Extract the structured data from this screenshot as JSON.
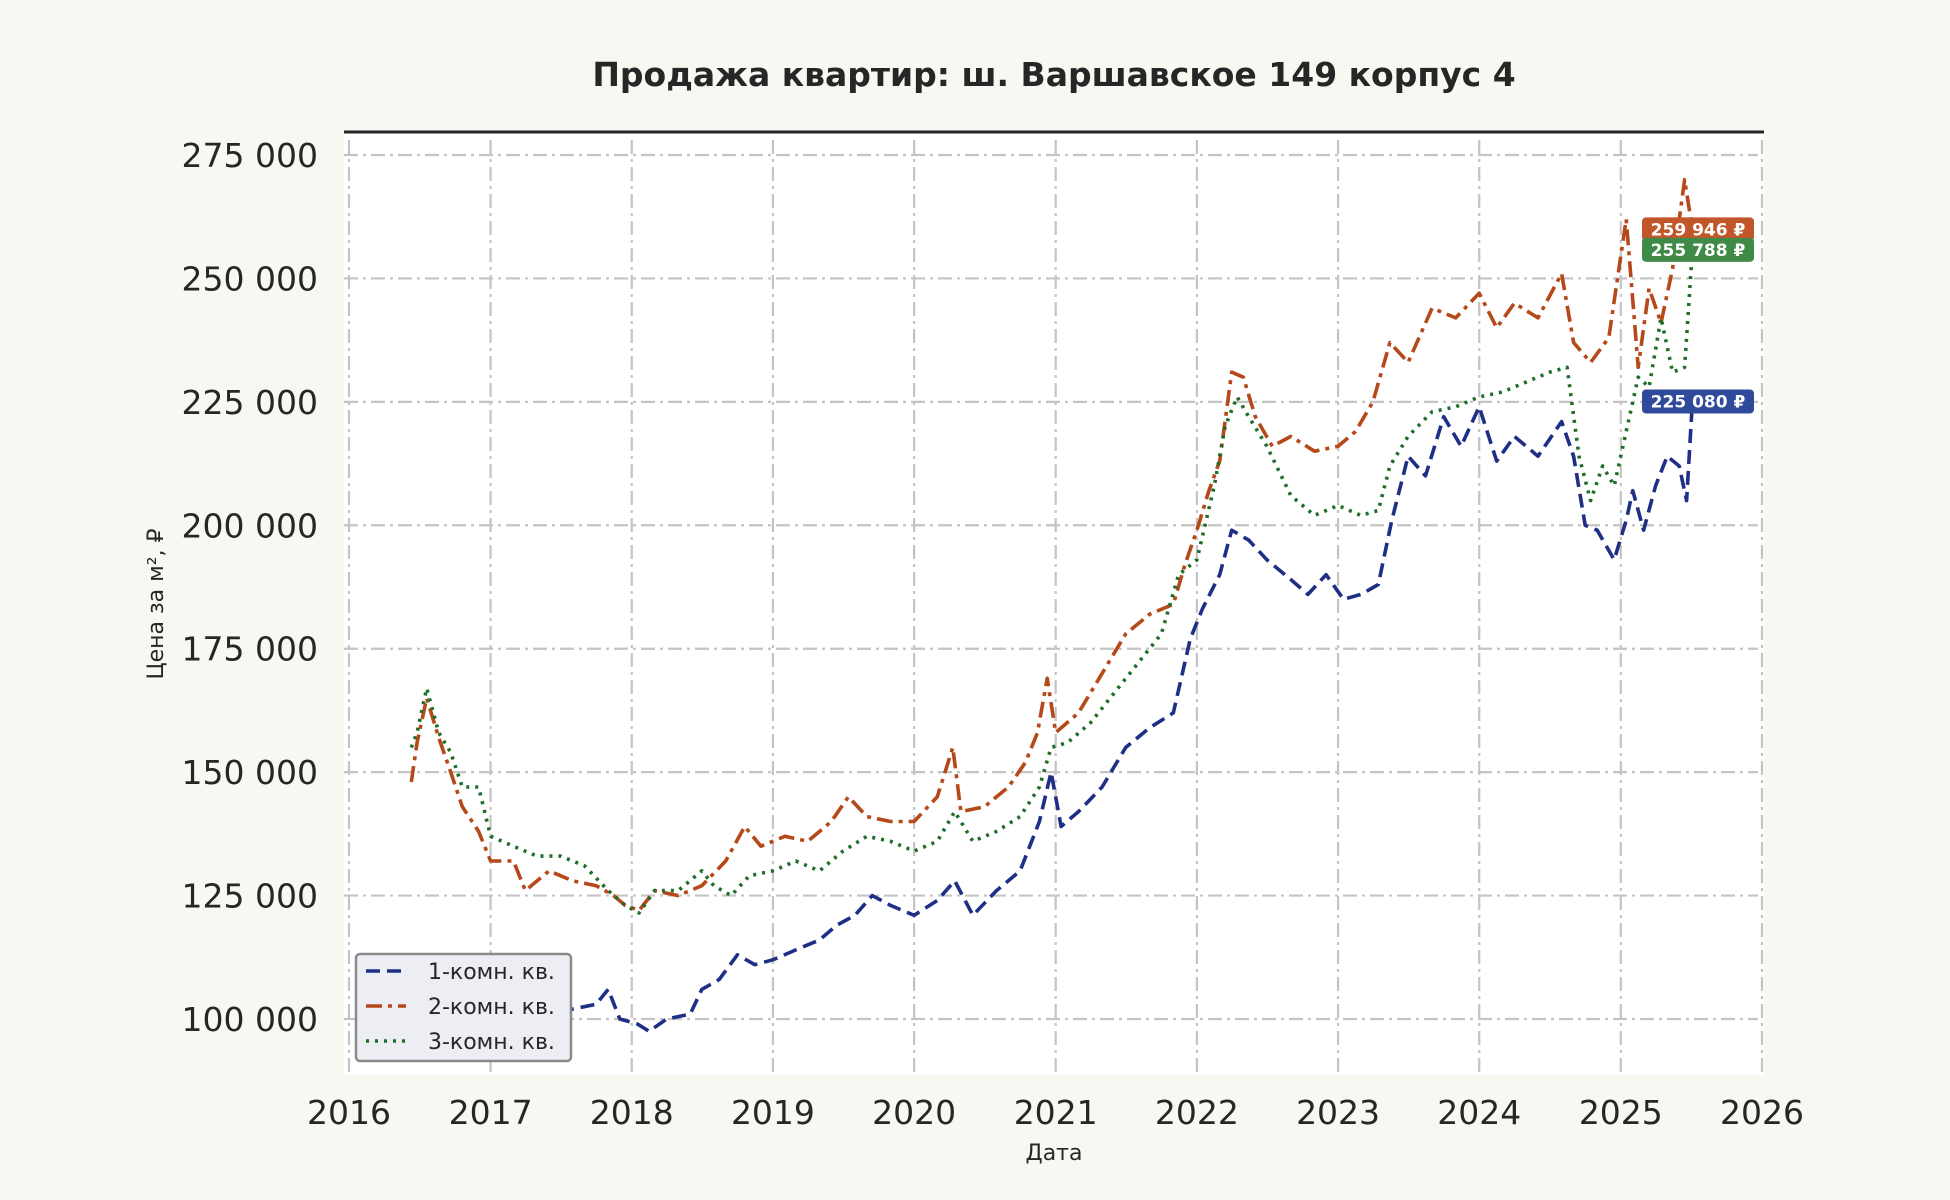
{
  "chart_data": {
    "type": "line",
    "title": "Продажа квартир: ш. Варшавское 149 корпус 4",
    "xlabel": "Дата",
    "ylabel": "Цена за м², ₽",
    "xlim": [
      "2016-01-01",
      "2026-01-01"
    ],
    "ylim": [
      88000,
      280000
    ],
    "x_ticks": [
      "2016",
      "2017",
      "2018",
      "2019",
      "2020",
      "2021",
      "2022",
      "2023",
      "2024",
      "2025",
      "2026"
    ],
    "y_ticks": [
      100000,
      125000,
      150000,
      175000,
      200000,
      225000,
      250000,
      275000
    ],
    "y_tick_labels": [
      "100 000",
      "125 000",
      "150 000",
      "175 000",
      "200 000",
      "225 000",
      "250 000",
      "275 000"
    ],
    "grid": true,
    "legend_position": "lower-left",
    "series": [
      {
        "name": "1-комн. кв.",
        "color": "#1f2f86",
        "dash": "dashed",
        "last_label": "225 080 ₽",
        "points": [
          [
            "2016-06-10",
            113000
          ],
          [
            "2016-07-15",
            112000
          ],
          [
            "2016-09-01",
            109000
          ],
          [
            "2016-10-15",
            107000
          ],
          [
            "2016-12-01",
            105000
          ],
          [
            "2017-02-01",
            107000
          ],
          [
            "2017-04-01",
            104000
          ],
          [
            "2017-06-01",
            104000
          ],
          [
            "2017-08-01",
            102000
          ],
          [
            "2017-10-01",
            103000
          ],
          [
            "2017-11-01",
            106000
          ],
          [
            "2017-12-01",
            100000
          ],
          [
            "2018-01-15",
            99000
          ],
          [
            "2018-02-15",
            97500
          ],
          [
            "2018-04-01",
            100000
          ],
          [
            "2018-06-01",
            101000
          ],
          [
            "2018-07-01",
            106000
          ],
          [
            "2018-08-15",
            108000
          ],
          [
            "2018-10-01",
            113000
          ],
          [
            "2018-11-15",
            111000
          ],
          [
            "2019-01-01",
            112000
          ],
          [
            "2019-03-01",
            114000
          ],
          [
            "2019-05-01",
            116000
          ],
          [
            "2019-06-15",
            119000
          ],
          [
            "2019-08-01",
            121000
          ],
          [
            "2019-09-15",
            125000
          ],
          [
            "2019-11-01",
            123000
          ],
          [
            "2020-01-01",
            121000
          ],
          [
            "2020-03-01",
            124000
          ],
          [
            "2020-04-15",
            128000
          ],
          [
            "2020-06-01",
            121000
          ],
          [
            "2020-08-01",
            126000
          ],
          [
            "2020-10-01",
            130000
          ],
          [
            "2020-11-20",
            140000
          ],
          [
            "2020-12-20",
            150000
          ],
          [
            "2021-01-15",
            139000
          ],
          [
            "2021-03-01",
            142000
          ],
          [
            "2021-05-01",
            147000
          ],
          [
            "2021-07-01",
            155000
          ],
          [
            "2021-09-01",
            159000
          ],
          [
            "2021-11-01",
            162000
          ],
          [
            "2021-12-15",
            177000
          ],
          [
            "2022-01-15",
            183000
          ],
          [
            "2022-03-01",
            190000
          ],
          [
            "2022-04-01",
            199000
          ],
          [
            "2022-05-15",
            197000
          ],
          [
            "2022-07-01",
            193000
          ],
          [
            "2022-09-01",
            189000
          ],
          [
            "2022-10-15",
            186000
          ],
          [
            "2022-12-01",
            190000
          ],
          [
            "2023-01-15",
            185000
          ],
          [
            "2023-03-01",
            186000
          ],
          [
            "2023-04-15",
            188000
          ],
          [
            "2023-05-20",
            201000
          ],
          [
            "2023-07-01",
            214000
          ],
          [
            "2023-08-15",
            210000
          ],
          [
            "2023-10-01",
            222000
          ],
          [
            "2023-11-15",
            216000
          ],
          [
            "2024-01-01",
            224000
          ],
          [
            "2024-02-15",
            213000
          ],
          [
            "2024-04-01",
            218000
          ],
          [
            "2024-06-01",
            214000
          ],
          [
            "2024-08-01",
            221000
          ],
          [
            "2024-09-01",
            214000
          ],
          [
            "2024-10-01",
            200000
          ],
          [
            "2024-11-01",
            199000
          ],
          [
            "2024-12-15",
            193000
          ],
          [
            "2025-01-15",
            201000
          ],
          [
            "2025-02-01",
            207000
          ],
          [
            "2025-03-01",
            199000
          ],
          [
            "2025-04-01",
            208000
          ],
          [
            "2025-05-01",
            214000
          ],
          [
            "2025-06-01",
            212000
          ],
          [
            "2025-06-20",
            205000
          ],
          [
            "2025-07-05",
            225080
          ]
        ]
      },
      {
        "name": "2-комн. кв.",
        "color": "#b5491a",
        "dash": "dashdot",
        "last_label": "259 946 ₽",
        "points": [
          [
            "2016-06-10",
            148000
          ],
          [
            "2016-06-25",
            156000
          ],
          [
            "2016-07-20",
            165000
          ],
          [
            "2016-08-20",
            157000
          ],
          [
            "2016-09-20",
            150000
          ],
          [
            "2016-10-20",
            143000
          ],
          [
            "2016-12-01",
            138000
          ],
          [
            "2017-01-01",
            132000
          ],
          [
            "2017-03-01",
            132000
          ],
          [
            "2017-04-01",
            126000
          ],
          [
            "2017-06-01",
            130000
          ],
          [
            "2017-08-01",
            128000
          ],
          [
            "2017-10-01",
            127000
          ],
          [
            "2017-11-15",
            125000
          ],
          [
            "2017-12-15",
            123000
          ],
          [
            "2018-01-20",
            122000
          ],
          [
            "2018-03-01",
            126000
          ],
          [
            "2018-05-01",
            125000
          ],
          [
            "2018-07-01",
            127000
          ],
          [
            "2018-09-01",
            132000
          ],
          [
            "2018-10-20",
            139000
          ],
          [
            "2018-12-01",
            135000
          ],
          [
            "2019-02-01",
            137000
          ],
          [
            "2019-04-01",
            136000
          ],
          [
            "2019-06-01",
            140000
          ],
          [
            "2019-07-15",
            145000
          ],
          [
            "2019-09-01",
            141000
          ],
          [
            "2019-11-01",
            140000
          ],
          [
            "2020-01-01",
            140000
          ],
          [
            "2020-03-01",
            145000
          ],
          [
            "2020-04-10",
            155000
          ],
          [
            "2020-05-01",
            142000
          ],
          [
            "2020-07-01",
            143000
          ],
          [
            "2020-09-01",
            147000
          ],
          [
            "2020-10-15",
            152000
          ],
          [
            "2020-11-15",
            158000
          ],
          [
            "2020-12-10",
            169000
          ],
          [
            "2021-01-01",
            158000
          ],
          [
            "2021-03-01",
            162000
          ],
          [
            "2021-05-01",
            170000
          ],
          [
            "2021-07-01",
            178000
          ],
          [
            "2021-09-01",
            182000
          ],
          [
            "2021-11-01",
            184000
          ],
          [
            "2021-12-01",
            192000
          ],
          [
            "2022-01-01",
            199000
          ],
          [
            "2022-02-01",
            207000
          ],
          [
            "2022-03-01",
            213000
          ],
          [
            "2022-04-01",
            231000
          ],
          [
            "2022-05-01",
            230000
          ],
          [
            "2022-06-01",
            222000
          ],
          [
            "2022-07-15",
            216000
          ],
          [
            "2022-09-01",
            218000
          ],
          [
            "2022-11-01",
            215000
          ],
          [
            "2023-01-01",
            216000
          ],
          [
            "2023-02-15",
            219000
          ],
          [
            "2023-04-01",
            225000
          ],
          [
            "2023-05-15",
            237000
          ],
          [
            "2023-07-01",
            233000
          ],
          [
            "2023-09-01",
            244000
          ],
          [
            "2023-11-01",
            242000
          ],
          [
            "2024-01-01",
            247000
          ],
          [
            "2024-02-15",
            240000
          ],
          [
            "2024-04-01",
            245000
          ],
          [
            "2024-06-01",
            242000
          ],
          [
            "2024-08-01",
            251000
          ],
          [
            "2024-09-01",
            237000
          ],
          [
            "2024-10-15",
            233000
          ],
          [
            "2024-12-01",
            238000
          ],
          [
            "2025-01-15",
            262000
          ],
          [
            "2025-02-15",
            232000
          ],
          [
            "2025-03-15",
            248000
          ],
          [
            "2025-04-15",
            241000
          ],
          [
            "2025-05-15",
            252000
          ],
          [
            "2025-06-15",
            270000
          ],
          [
            "2025-07-05",
            259946
          ]
        ]
      },
      {
        "name": "3-комн. кв.",
        "color": "#1e6e2a",
        "dash": "dotted",
        "last_label": "255 788 ₽",
        "points": [
          [
            "2016-06-10",
            155000
          ],
          [
            "2016-06-25",
            158000
          ],
          [
            "2016-07-20",
            167000
          ],
          [
            "2016-08-20",
            158000
          ],
          [
            "2016-09-20",
            154000
          ],
          [
            "2016-10-20",
            147000
          ],
          [
            "2016-12-01",
            147000
          ],
          [
            "2017-01-01",
            137000
          ],
          [
            "2017-03-01",
            135000
          ],
          [
            "2017-05-01",
            133000
          ],
          [
            "2017-07-01",
            133000
          ],
          [
            "2017-09-01",
            131000
          ],
          [
            "2017-11-01",
            126000
          ],
          [
            "2017-12-15",
            123000
          ],
          [
            "2018-01-20",
            121500
          ],
          [
            "2018-03-01",
            126000
          ],
          [
            "2018-05-01",
            126000
          ],
          [
            "2018-07-01",
            130000
          ],
          [
            "2018-08-01",
            127000
          ],
          [
            "2018-09-15",
            125000
          ],
          [
            "2018-11-01",
            129000
          ],
          [
            "2019-01-01",
            130000
          ],
          [
            "2019-03-01",
            132000
          ],
          [
            "2019-05-01",
            130000
          ],
          [
            "2019-07-01",
            134000
          ],
          [
            "2019-09-01",
            137000
          ],
          [
            "2019-11-01",
            136000
          ],
          [
            "2020-01-01",
            134000
          ],
          [
            "2020-03-01",
            136000
          ],
          [
            "2020-04-15",
            142000
          ],
          [
            "2020-06-01",
            136000
          ],
          [
            "2020-08-01",
            138000
          ],
          [
            "2020-10-01",
            141000
          ],
          [
            "2020-11-20",
            147000
          ],
          [
            "2020-12-20",
            155000
          ],
          [
            "2021-02-01",
            156000
          ],
          [
            "2021-04-01",
            160000
          ],
          [
            "2021-06-01",
            166000
          ],
          [
            "2021-08-01",
            172000
          ],
          [
            "2021-10-01",
            178000
          ],
          [
            "2021-11-15",
            190000
          ],
          [
            "2022-01-01",
            193000
          ],
          [
            "2022-02-15",
            208000
          ],
          [
            "2022-03-15",
            220000
          ],
          [
            "2022-04-15",
            226000
          ],
          [
            "2022-05-15",
            222000
          ],
          [
            "2022-07-01",
            216000
          ],
          [
            "2022-09-01",
            206000
          ],
          [
            "2022-11-01",
            202000
          ],
          [
            "2023-01-01",
            204000
          ],
          [
            "2023-03-01",
            202000
          ],
          [
            "2023-04-15",
            203000
          ],
          [
            "2023-05-15",
            212000
          ],
          [
            "2023-07-01",
            218000
          ],
          [
            "2023-09-01",
            223000
          ],
          [
            "2023-11-01",
            224000
          ],
          [
            "2024-01-01",
            226000
          ],
          [
            "2024-03-01",
            227000
          ],
          [
            "2024-05-01",
            229000
          ],
          [
            "2024-07-01",
            231000
          ],
          [
            "2024-08-15",
            232000
          ],
          [
            "2024-09-15",
            214000
          ],
          [
            "2024-10-15",
            205000
          ],
          [
            "2024-11-15",
            212000
          ],
          [
            "2024-12-15",
            208000
          ],
          [
            "2025-01-15",
            219000
          ],
          [
            "2025-02-15",
            230000
          ],
          [
            "2025-03-15",
            228000
          ],
          [
            "2025-04-15",
            242000
          ],
          [
            "2025-05-15",
            231000
          ],
          [
            "2025-06-15",
            232000
          ],
          [
            "2025-07-05",
            255788
          ]
        ]
      }
    ]
  }
}
